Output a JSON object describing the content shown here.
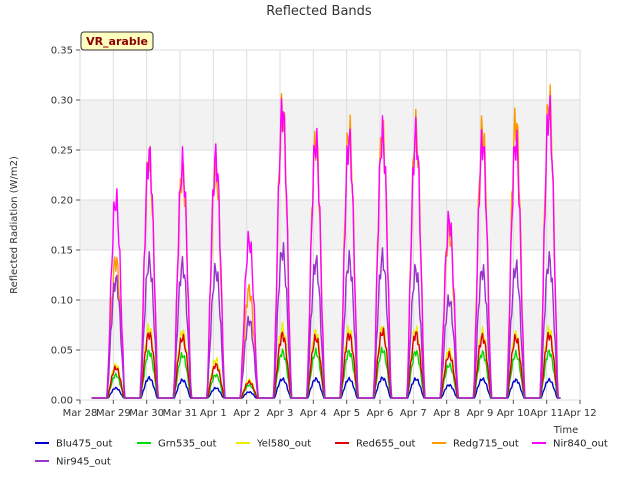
{
  "chart_data": {
    "type": "line",
    "title": "Reflected Bands",
    "xlabel": "Time",
    "ylabel": "Reflected Radiation (W/m2)",
    "badge": "VR_arable",
    "ylim": [
      0,
      0.35
    ],
    "y_ticks": [
      "0.00",
      "0.05",
      "0.10",
      "0.15",
      "0.20",
      "0.25",
      "0.30",
      "0.35"
    ],
    "x_ticks": [
      "Mar 28",
      "Mar 29",
      "Mar 30",
      "Mar 31",
      "Apr 1",
      "Apr 2",
      "Apr 3",
      "Apr 4",
      "Apr 5",
      "Apr 6",
      "Apr 7",
      "Apr 8",
      "Apr 9",
      "Apr 10",
      "Apr 11",
      "Apr 12"
    ],
    "xlim_days": [
      0,
      15
    ],
    "grid": true,
    "legend_position": "bottom",
    "days": [
      "Mar 29",
      "Mar 30",
      "Mar 31",
      "Apr 1",
      "Apr 2",
      "Apr 3",
      "Apr 4",
      "Apr 5",
      "Apr 6",
      "Apr 7",
      "Apr 8",
      "Apr 9",
      "Apr 10",
      "Apr 11"
    ],
    "series": [
      {
        "name": "Blu475_out",
        "color": "#0000cc",
        "daily_peaks": [
          0.012,
          0.022,
          0.02,
          0.012,
          0.008,
          0.021,
          0.021,
          0.021,
          0.022,
          0.021,
          0.015,
          0.021,
          0.02,
          0.02
        ]
      },
      {
        "name": "Grn535_out",
        "color": "#00dd00",
        "daily_peaks": [
          0.025,
          0.048,
          0.045,
          0.025,
          0.015,
          0.048,
          0.048,
          0.048,
          0.05,
          0.048,
          0.035,
          0.047,
          0.046,
          0.048
        ]
      },
      {
        "name": "Yel580_out",
        "color": "#eeee00",
        "daily_peaks": [
          0.035,
          0.072,
          0.068,
          0.04,
          0.02,
          0.072,
          0.068,
          0.07,
          0.072,
          0.07,
          0.05,
          0.068,
          0.066,
          0.07
        ]
      },
      {
        "name": "Red655_out",
        "color": "#dd0000",
        "daily_peaks": [
          0.032,
          0.066,
          0.062,
          0.035,
          0.018,
          0.065,
          0.062,
          0.065,
          0.068,
          0.066,
          0.045,
          0.063,
          0.062,
          0.065
        ]
      },
      {
        "name": "Redg715_out",
        "color": "#ff9900",
        "daily_peaks": [
          0.14,
          0.24,
          0.23,
          0.23,
          0.11,
          0.29,
          0.26,
          0.27,
          0.27,
          0.27,
          0.17,
          0.27,
          0.28,
          0.3
        ]
      },
      {
        "name": "Nir840_out",
        "color": "#ff00ff",
        "daily_peaks": [
          0.2,
          0.245,
          0.235,
          0.242,
          0.16,
          0.29,
          0.258,
          0.26,
          0.265,
          0.265,
          0.18,
          0.258,
          0.258,
          0.29
        ]
      },
      {
        "name": "Nir945_out",
        "color": "#9933cc",
        "daily_peaks": [
          0.12,
          0.138,
          0.135,
          0.13,
          0.08,
          0.15,
          0.138,
          0.14,
          0.142,
          0.13,
          0.1,
          0.13,
          0.133,
          0.14
        ]
      }
    ]
  }
}
